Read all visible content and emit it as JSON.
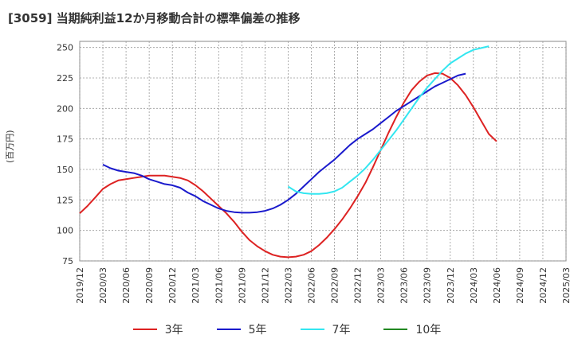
{
  "chart_data": {
    "type": "line",
    "title": "[3059]  当期純利益12か月移動合計の標準偏差の推移",
    "ylabel": "(百万円)",
    "xlabel": "",
    "ylim": [
      75,
      255
    ],
    "yticks": [
      75,
      100,
      125,
      150,
      175,
      200,
      225,
      250
    ],
    "xticks": [
      "2019/12",
      "2020/03",
      "2020/06",
      "2020/09",
      "2020/12",
      "2021/03",
      "2021/06",
      "2021/09",
      "2021/12",
      "2022/03",
      "2022/06",
      "2022/09",
      "2022/12",
      "2023/03",
      "2023/06",
      "2023/09",
      "2023/12",
      "2024/03",
      "2024/06",
      "2024/09",
      "2024/12",
      "2025/03"
    ],
    "grid": true,
    "legend_position": "bottom",
    "series": [
      {
        "name": "3年",
        "color": "#dd2222",
        "start": "2019/12",
        "values": [
          114,
          120,
          127,
          134,
          138,
          141,
          142,
          143,
          144,
          145,
          145,
          145,
          144,
          143,
          141,
          137,
          132,
          126,
          120,
          114,
          107,
          99,
          92,
          87,
          83,
          80,
          78.5,
          78,
          78.5,
          80,
          83,
          88,
          94,
          101,
          109,
          118,
          128,
          139,
          152,
          166,
          180,
          193,
          205,
          215,
          222,
          227,
          229,
          228.5,
          225,
          219,
          211,
          201,
          190,
          179,
          173
        ]
      },
      {
        "name": "5年",
        "color": "#1a1acc",
        "start": "2020/03",
        "values": [
          154,
          151,
          149,
          148,
          147,
          145,
          142,
          140,
          138,
          137,
          135,
          131,
          128,
          124,
          121,
          118,
          116,
          115,
          114.5,
          114.5,
          115,
          116,
          118,
          121,
          125,
          130,
          136,
          142,
          148,
          153,
          158,
          164,
          170,
          175,
          179,
          183,
          188,
          193,
          198,
          202,
          206,
          210,
          214,
          218,
          221,
          224,
          227,
          228.5
        ]
      },
      {
        "name": "7年",
        "color": "#33e6f0",
        "start": "2022/03",
        "values": [
          136,
          132,
          130.5,
          130,
          130,
          130.5,
          132,
          135,
          140,
          145,
          151,
          158,
          166,
          174,
          182,
          191,
          200,
          209,
          217,
          224,
          231,
          237,
          241,
          245,
          248,
          249.5,
          251
        ]
      },
      {
        "name": "10年",
        "color": "#228822",
        "start": "2019/12",
        "values": []
      }
    ]
  }
}
